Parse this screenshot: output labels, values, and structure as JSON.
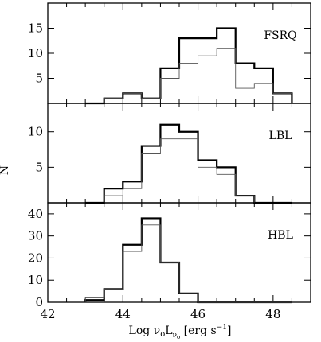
{
  "chart_data": {
    "type": "histogram",
    "xlabel": "Log νₒLₙₒ [erg s⁻¹]",
    "ylabel": "N",
    "x_ticks": [
      42,
      44,
      46,
      48
    ],
    "xlim": [
      42,
      49
    ],
    "bin_edges": [
      43.0,
      43.5,
      44.0,
      44.5,
      45.0,
      45.5,
      46.0,
      46.5,
      47.0,
      47.5,
      48.0,
      48.5
    ],
    "panels": [
      {
        "label": "FSRQ",
        "ylim": [
          0,
          20
        ],
        "y_ticks": [
          5,
          10,
          15
        ],
        "series": [
          {
            "style": "thick",
            "values": [
              0,
              1,
              2,
              1,
              7,
              13,
              13,
              15,
              8,
              7,
              2
            ]
          },
          {
            "style": "thin",
            "values": [
              0,
              1,
              2,
              1,
              5,
              8,
              9.5,
              11,
              3,
              4,
              2
            ]
          }
        ]
      },
      {
        "label": "LBL",
        "ylim": [
          0,
          14
        ],
        "y_ticks": [
          5,
          10
        ],
        "series": [
          {
            "style": "thick",
            "values": [
              0,
              2,
              3,
              8,
              11,
              10,
              6,
              5,
              1,
              0,
              0
            ]
          },
          {
            "style": "thin",
            "values": [
              0,
              1,
              2,
              7,
              9,
              9,
              5,
              4,
              1,
              0,
              0
            ]
          }
        ]
      },
      {
        "label": "HBL",
        "ylim": [
          0,
          45
        ],
        "y_ticks": [
          0,
          10,
          20,
          30,
          40
        ],
        "series": [
          {
            "style": "thick",
            "values": [
              1,
              6,
              26,
              38,
              18,
              4,
              0,
              0,
              0,
              0,
              0
            ]
          },
          {
            "style": "thin",
            "values": [
              2,
              6,
              23,
              35,
              18,
              4,
              0,
              0,
              0,
              0,
              0
            ]
          }
        ]
      }
    ]
  }
}
